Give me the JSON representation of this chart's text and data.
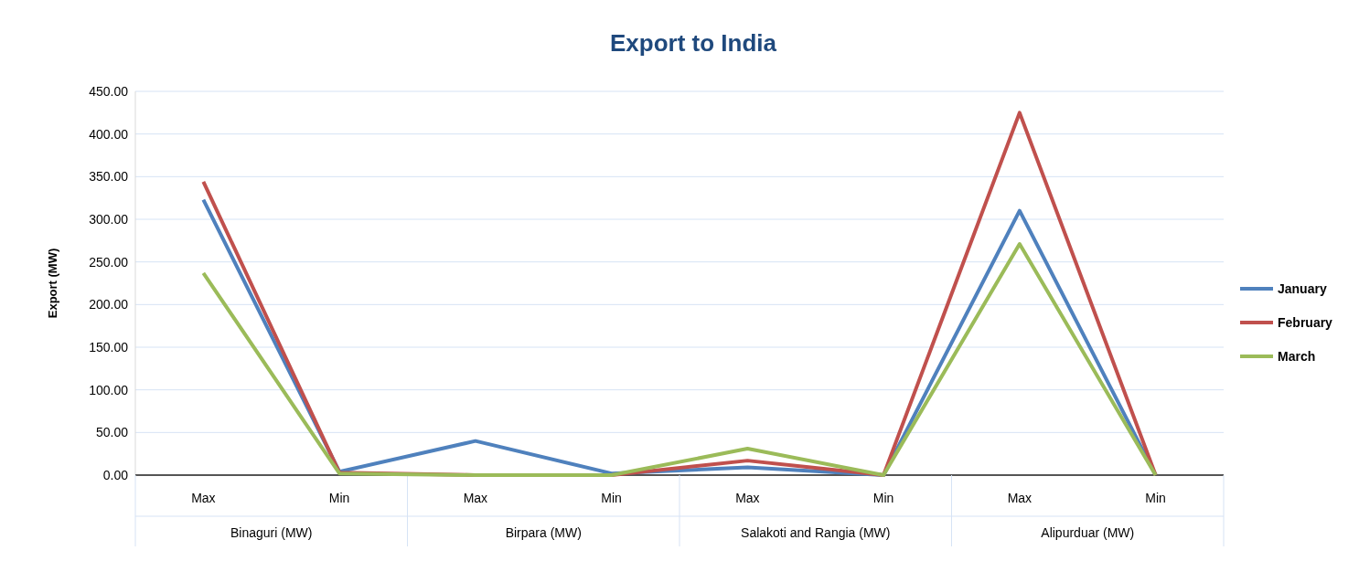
{
  "chart_data": {
    "type": "line",
    "title": "Export to India",
    "ylabel": "Export (MW)",
    "categories": [
      "Max",
      "Min",
      "Max",
      "Min",
      "Max",
      "Min",
      "Max",
      "Min"
    ],
    "annotations": [
      "Binaguri (MW)",
      "Birpara (MW)",
      "Salakoti and Rangia (MW)",
      "Alipurduar (MW)"
    ],
    "series": [
      {
        "name": "January",
        "color": "#4f81bd",
        "values": [
          323,
          4,
          40,
          2,
          9,
          0,
          310,
          0
        ]
      },
      {
        "name": "February",
        "color": "#c0504d",
        "values": [
          344,
          3,
          0,
          0,
          17,
          0,
          425,
          0
        ]
      },
      {
        "name": "March",
        "color": "#9bbb59",
        "values": [
          237,
          2,
          0,
          0,
          31,
          0,
          271,
          0
        ]
      }
    ],
    "ylim": [
      0,
      450
    ],
    "yticks": [
      {
        "value": 0,
        "label": "0.00"
      },
      {
        "value": 50,
        "label": "50.00"
      },
      {
        "value": 100,
        "label": "100.00"
      },
      {
        "value": 150,
        "label": "150.00"
      },
      {
        "value": 200,
        "label": "200.00"
      },
      {
        "value": 250,
        "label": "250.00"
      },
      {
        "value": 300,
        "label": "300.00"
      },
      {
        "value": 350,
        "label": "350.00"
      },
      {
        "value": 400,
        "label": "400.00"
      },
      {
        "value": 450,
        "label": "450.00"
      }
    ],
    "grid": "y",
    "legend": "right",
    "marker": "none",
    "line_style": "solid"
  }
}
